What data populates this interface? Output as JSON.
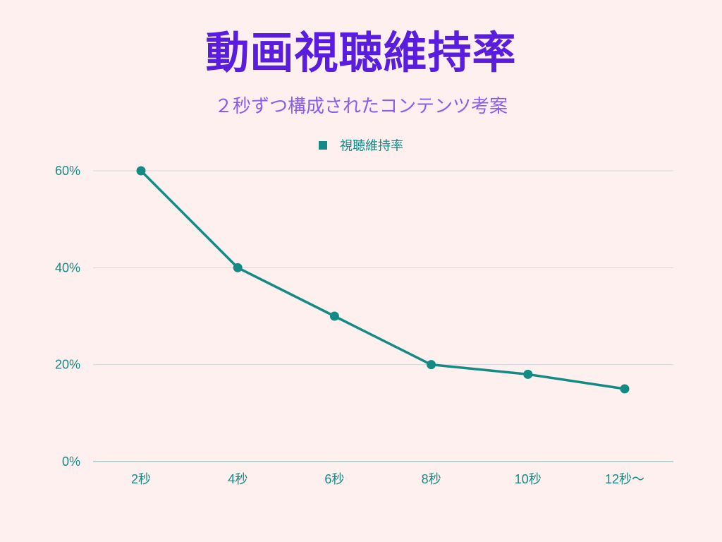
{
  "title": "動画視聴維持率",
  "subtitle": "２秒ずつ構成されたコンテンツ考案",
  "colors": {
    "background": "#fdf0ef",
    "title": "#5a1de0",
    "subtitle": "#8a5cf0",
    "series": "#148a84",
    "axis_text": "#148a84",
    "grid": "#d5d8de"
  },
  "chart_data": {
    "type": "line",
    "categories": [
      "2秒",
      "4秒",
      "6秒",
      "8秒",
      "10秒",
      "12秒〜"
    ],
    "series": [
      {
        "name": "視聴維持率",
        "values": [
          60,
          40,
          30,
          20,
          18,
          15
        ]
      }
    ],
    "y_ticks": [
      "0%",
      "20%",
      "40%",
      "60%"
    ],
    "ylim": [
      0,
      60
    ],
    "grid": true,
    "legend": "top-center"
  }
}
